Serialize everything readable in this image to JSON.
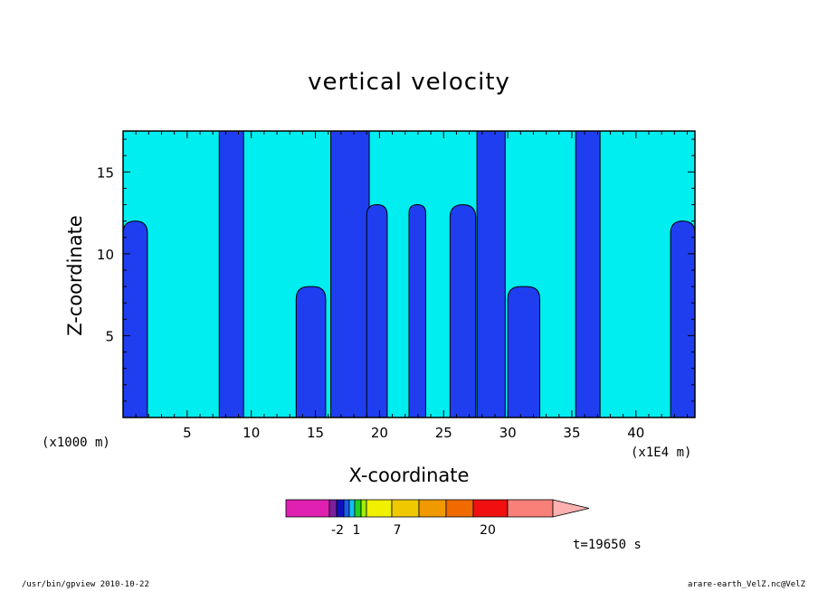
{
  "chart_data": {
    "type": "heatmap",
    "title": "vertical velocity",
    "xlabel": "X-coordinate",
    "ylabel": "Z-coordinate",
    "x_unit_label": "(x1000 m)",
    "x_scale_label": "(x1E4 m)",
    "xlim": [
      0,
      44.6
    ],
    "ylim": [
      0,
      17.5
    ],
    "x_ticks": [
      5,
      10,
      15,
      20,
      25,
      30,
      35,
      40
    ],
    "y_ticks": [
      5,
      10,
      15
    ],
    "grid": false,
    "colors": {
      "negative_region": "#1e3ef0",
      "near_zero_region": "#00eef0",
      "contour_line": "#000000"
    },
    "negative_columns": [
      {
        "x0": 0.0,
        "x1": 1.9,
        "top": 12.0
      },
      {
        "x0": 7.5,
        "x1": 9.4,
        "top": 17.5
      },
      {
        "x0": 13.5,
        "x1": 15.8,
        "top": 8.0
      },
      {
        "x0": 16.2,
        "x1": 19.2,
        "top": 17.5
      },
      {
        "x0": 19.0,
        "x1": 20.6,
        "top": 13.0
      },
      {
        "x0": 22.3,
        "x1": 23.6,
        "top": 13.0
      },
      {
        "x0": 25.5,
        "x1": 27.5,
        "top": 13.0
      },
      {
        "x0": 27.6,
        "x1": 29.8,
        "top": 17.5
      },
      {
        "x0": 30.0,
        "x1": 32.5,
        "top": 8.0
      },
      {
        "x0": 35.3,
        "x1": 37.2,
        "top": 17.5
      },
      {
        "x0": 42.7,
        "x1": 44.6,
        "top": 12.0
      }
    ],
    "colorbar": {
      "colors": [
        "#e020b0",
        "#7e1fa0",
        "#1010c0",
        "#1a5ef0",
        "#10c0f0",
        "#20d020",
        "#a0f000",
        "#f0f000",
        "#f0c800",
        "#f09a00",
        "#f06a00",
        "#f01010",
        "#f88078",
        "#fcb0b0"
      ],
      "labels": [
        "-2",
        "1",
        "7",
        "20"
      ]
    },
    "time_label": "t=19650 s"
  },
  "footer": {
    "left": "/usr/bin/gpview   2010-10-22",
    "right": "arare-earth_VelZ.nc@VelZ"
  }
}
